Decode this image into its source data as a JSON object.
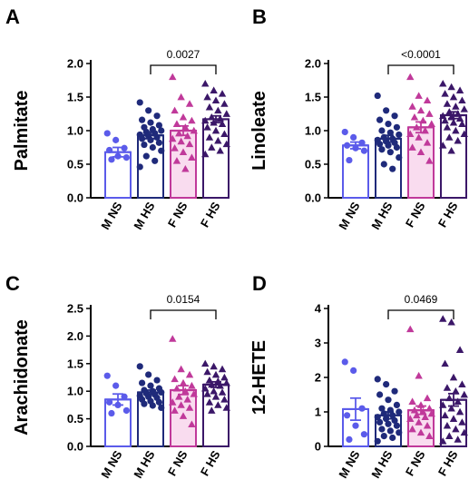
{
  "colors": {
    "M NS": "#5b5bea",
    "M HS": "#1f2a7a",
    "F NS": "#c0399a",
    "F HS": "#3b1768",
    "F NS fill": "#f9dcef",
    "M NS fill": "#ffffff"
  },
  "chart_data": [
    {
      "type": "bar",
      "panel": "A",
      "ylabel": "Palmitate",
      "categories": [
        "M NS",
        "M HS",
        "F NS",
        "F HS"
      ],
      "ylim": [
        0,
        2.0
      ],
      "yticks": [
        "0.0",
        "0.5",
        "1.0",
        "1.5",
        "2.0"
      ],
      "means": [
        0.68,
        0.93,
        1.0,
        1.17
      ],
      "sem": [
        0.07,
        0.05,
        0.07,
        0.05
      ],
      "points": [
        [
          0.96,
          0.86,
          0.74,
          0.71,
          0.62,
          0.6,
          0.57
        ],
        [
          1.42,
          1.3,
          1.22,
          1.16,
          1.12,
          1.08,
          1.05,
          1.02,
          1.0,
          0.98,
          0.96,
          0.94,
          0.92,
          0.9,
          0.88,
          0.86,
          0.82,
          0.79,
          0.75,
          0.7,
          0.62,
          0.55,
          0.46
        ],
        [
          1.8,
          1.5,
          1.4,
          1.3,
          1.2,
          1.15,
          1.1,
          1.05,
          1.0,
          0.96,
          0.92,
          0.88,
          0.84,
          0.8,
          0.74,
          0.68,
          0.6,
          0.55,
          0.43
        ],
        [
          1.7,
          1.6,
          1.55,
          1.5,
          1.45,
          1.4,
          1.35,
          1.3,
          1.25,
          1.2,
          1.18,
          1.15,
          1.12,
          1.1,
          1.05,
          1.0,
          0.95,
          0.9,
          0.85,
          0.8,
          0.75,
          0.7,
          0.65
        ]
      ],
      "comparison": {
        "from": "M HS",
        "to": "F HS",
        "p": "0.0027"
      }
    },
    {
      "type": "bar",
      "panel": "B",
      "ylabel": "Linoleate",
      "categories": [
        "M NS",
        "M HS",
        "F NS",
        "F HS"
      ],
      "ylim": [
        0,
        2.0
      ],
      "yticks": [
        "0.0",
        "0.5",
        "1.0",
        "1.5",
        "2.0"
      ],
      "means": [
        0.78,
        0.88,
        1.05,
        1.23
      ],
      "sem": [
        0.05,
        0.05,
        0.08,
        0.05
      ],
      "points": [
        [
          0.98,
          0.9,
          0.82,
          0.78,
          0.74,
          0.7,
          0.56
        ],
        [
          1.52,
          1.3,
          1.22,
          1.16,
          1.1,
          1.05,
          1.0,
          0.97,
          0.94,
          0.9,
          0.88,
          0.86,
          0.84,
          0.82,
          0.8,
          0.78,
          0.75,
          0.72,
          0.68,
          0.6,
          0.5,
          0.43
        ],
        [
          1.8,
          1.52,
          1.45,
          1.36,
          1.3,
          1.25,
          1.2,
          1.15,
          1.1,
          1.05,
          1.0,
          0.95,
          0.9,
          0.82,
          0.75,
          0.68,
          0.55
        ],
        [
          1.7,
          1.65,
          1.6,
          1.55,
          1.5,
          1.45,
          1.4,
          1.36,
          1.32,
          1.28,
          1.25,
          1.22,
          1.2,
          1.18,
          1.15,
          1.12,
          1.1,
          1.05,
          1.0,
          0.95,
          0.9,
          0.85,
          0.78,
          0.7
        ]
      ],
      "comparison": {
        "from": "M HS",
        "to": "F HS",
        "p": "<0.0001"
      }
    },
    {
      "type": "bar",
      "panel": "C",
      "ylabel": "Arachidonate",
      "categories": [
        "M NS",
        "M HS",
        "F NS",
        "F HS"
      ],
      "ylim": [
        0,
        2.5
      ],
      "yticks": [
        "0.0",
        "0.5",
        "1.0",
        "1.5",
        "2.0",
        "2.5"
      ],
      "means": [
        0.85,
        0.98,
        1.02,
        1.12
      ],
      "sem": [
        0.1,
        0.04,
        0.08,
        0.05
      ],
      "points": [
        [
          1.28,
          1.1,
          0.9,
          0.8,
          0.75,
          0.65,
          0.6
        ],
        [
          1.45,
          1.3,
          1.2,
          1.15,
          1.1,
          1.05,
          1.02,
          1.0,
          0.98,
          0.96,
          0.94,
          0.92,
          0.9,
          0.88,
          0.85,
          0.82,
          0.8,
          0.77,
          0.74,
          0.7
        ],
        [
          1.95,
          1.4,
          1.3,
          1.22,
          1.15,
          1.1,
          1.05,
          1.0,
          0.95,
          0.9,
          0.85,
          0.8,
          0.75,
          0.7,
          0.65,
          0.55,
          0.4
        ],
        [
          1.5,
          1.45,
          1.4,
          1.35,
          1.3,
          1.25,
          1.2,
          1.18,
          1.15,
          1.12,
          1.1,
          1.05,
          1.0,
          0.98,
          0.95,
          0.9,
          0.85,
          0.8,
          0.75,
          0.7,
          0.65
        ]
      ],
      "comparison": {
        "from": "M HS",
        "to": "F HS",
        "p": "0.0154"
      }
    },
    {
      "type": "bar",
      "panel": "D",
      "ylabel": "12-HETE",
      "categories": [
        "M NS",
        "M HS",
        "F NS",
        "F HS"
      ],
      "ylim": [
        0,
        4
      ],
      "yticks": [
        "0",
        "1",
        "2",
        "3",
        "4"
      ],
      "means": [
        1.08,
        0.9,
        1.05,
        1.35
      ],
      "sem": [
        0.32,
        0.1,
        0.12,
        0.18
      ],
      "points": [
        [
          2.45,
          2.2,
          1.1,
          0.9,
          0.6,
          0.35,
          0.2
        ],
        [
          1.95,
          1.8,
          1.6,
          1.5,
          1.35,
          1.2,
          1.1,
          1.05,
          1.0,
          0.95,
          0.9,
          0.85,
          0.8,
          0.75,
          0.7,
          0.65,
          0.6,
          0.5,
          0.45,
          0.4,
          0.3,
          0.25,
          0.15
        ],
        [
          3.4,
          2.05,
          1.4,
          1.3,
          1.2,
          1.1,
          1.05,
          1.0,
          0.95,
          0.9,
          0.85,
          0.8,
          0.7,
          0.6,
          0.5,
          0.4,
          0.3
        ],
        [
          3.7,
          3.6,
          2.8,
          2.4,
          2.0,
          1.8,
          1.7,
          1.6,
          1.5,
          1.4,
          1.3,
          1.2,
          1.1,
          1.0,
          0.9,
          0.8,
          0.7,
          0.6,
          0.5,
          0.4,
          0.3,
          0.2,
          0.15
        ]
      ],
      "comparison": {
        "from": "M HS",
        "to": "F HS",
        "p": "0.0469"
      }
    }
  ]
}
